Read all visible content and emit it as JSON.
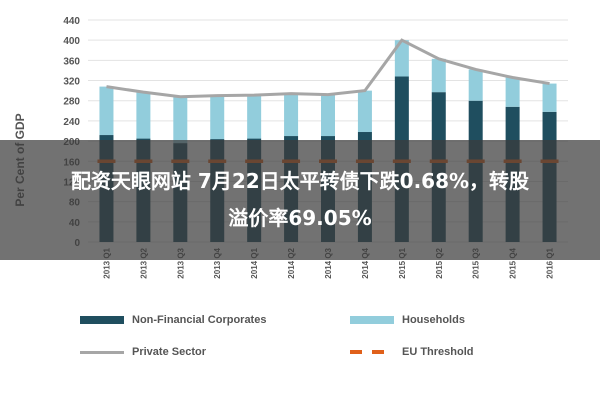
{
  "chart_data": {
    "type": "bar",
    "stacked": true,
    "ylabel": "Per Cent of GDP",
    "ylim": [
      0,
      440
    ],
    "yticks": [
      0,
      40,
      80,
      120,
      160,
      200,
      240,
      280,
      320,
      360,
      400,
      440
    ],
    "categories": [
      "2013 Q1",
      "2013 Q2",
      "2013 Q3",
      "2013 Q4",
      "2014 Q1",
      "2014 Q2",
      "2014 Q3",
      "2014 Q4",
      "2015 Q1",
      "2015 Q2",
      "2015 Q3",
      "2015 Q4",
      "2016 Q1"
    ],
    "series": [
      {
        "name": "Non-Financial Corporates",
        "kind": "bar",
        "color": "#1f4e5f",
        "values": [
          212,
          205,
          196,
          204,
          205,
          210,
          210,
          218,
          328,
          297,
          280,
          268,
          258
        ]
      },
      {
        "name": "Households",
        "kind": "bar",
        "color": "#92cddc",
        "values": [
          96,
          92,
          92,
          86,
          86,
          84,
          82,
          82,
          72,
          66,
          62,
          58,
          56
        ]
      },
      {
        "name": "Private Sector",
        "kind": "line",
        "color": "#a6a6a6",
        "values": [
          308,
          297,
          288,
          290,
          291,
          294,
          292,
          300,
          400,
          363,
          342,
          326,
          314
        ]
      },
      {
        "name": "EU Threshold",
        "kind": "dashed-line",
        "color": "#e0601a",
        "values": [
          160,
          160,
          160,
          160,
          160,
          160,
          160,
          160,
          160,
          160,
          160,
          160,
          160
        ]
      }
    ],
    "grid": true,
    "legend_position": "bottom"
  },
  "overlay": {
    "line1": "配资天眼网站 7月22日太平转债下跌0.68%，转股",
    "line2": "溢价率69.05%"
  }
}
